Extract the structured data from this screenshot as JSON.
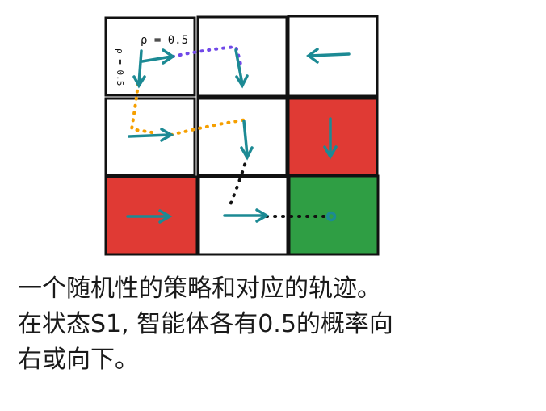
{
  "colors": {
    "red": "#e03a34",
    "green": "#2f9e44",
    "arrow": "#1c8a94",
    "path_purple": "#7048e8",
    "path_orange": "#f59f00",
    "path_black": "#111111",
    "border": "#111111"
  },
  "grid": {
    "rows": 3,
    "cols": 3,
    "cells": [
      {
        "row": 0,
        "col": 0,
        "fill": "white",
        "arrows": [
          "right",
          "down"
        ]
      },
      {
        "row": 0,
        "col": 1,
        "fill": "white",
        "arrows": [
          "down"
        ]
      },
      {
        "row": 0,
        "col": 2,
        "fill": "white",
        "arrows": [
          "left"
        ]
      },
      {
        "row": 1,
        "col": 0,
        "fill": "white",
        "arrows": [
          "right"
        ]
      },
      {
        "row": 1,
        "col": 1,
        "fill": "white",
        "arrows": [
          "down"
        ]
      },
      {
        "row": 1,
        "col": 2,
        "fill": "red",
        "arrows": [
          "down"
        ]
      },
      {
        "row": 2,
        "col": 0,
        "fill": "red",
        "arrows": [
          "right"
        ]
      },
      {
        "row": 2,
        "col": 1,
        "fill": "white",
        "arrows": [
          "right"
        ]
      },
      {
        "row": 2,
        "col": 2,
        "fill": "green",
        "arrows": [],
        "terminal_marker": "circle"
      }
    ]
  },
  "labels": {
    "prob_right": "ρ = 0.5",
    "prob_down": "ρ = 0.5"
  },
  "caption": {
    "line1": "一个随机性的策略和对应的轨迹。",
    "line2": "在状态S1, 智能体各有0.5的概率向",
    "line3": "右或向下。"
  }
}
